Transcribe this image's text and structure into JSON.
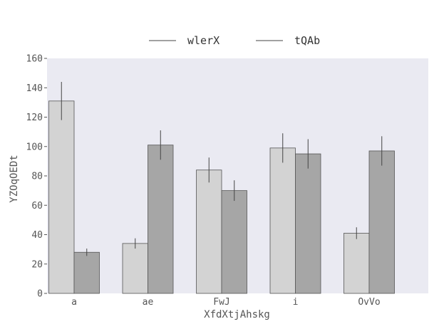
{
  "chart_data": {
    "type": "bar",
    "categories": [
      "a",
      "ae",
      "FwJ",
      "i",
      "OvVo"
    ],
    "series": [
      {
        "name": "wlerX",
        "values": [
          131,
          34,
          84,
          99,
          41
        ],
        "errors": [
          13,
          3.5,
          8.5,
          10,
          4
        ],
        "color": "#d3d3d3"
      },
      {
        "name": "tQAb",
        "values": [
          28,
          101,
          70,
          95,
          97
        ],
        "errors": [
          2.5,
          10,
          7,
          10,
          10
        ],
        "color": "#a6a6a6"
      }
    ],
    "xlabel": "XfdXtjAhskg",
    "ylabel": "YZOqOEDt",
    "ylim": [
      0,
      160
    ],
    "yticks": [
      0,
      20,
      40,
      60,
      80,
      100,
      120,
      140,
      160
    ],
    "legend_position": "top-center",
    "grid": false,
    "background_color": "#eaeaf2",
    "bar_edge_color": "#555555",
    "error_color": "#444444"
  }
}
